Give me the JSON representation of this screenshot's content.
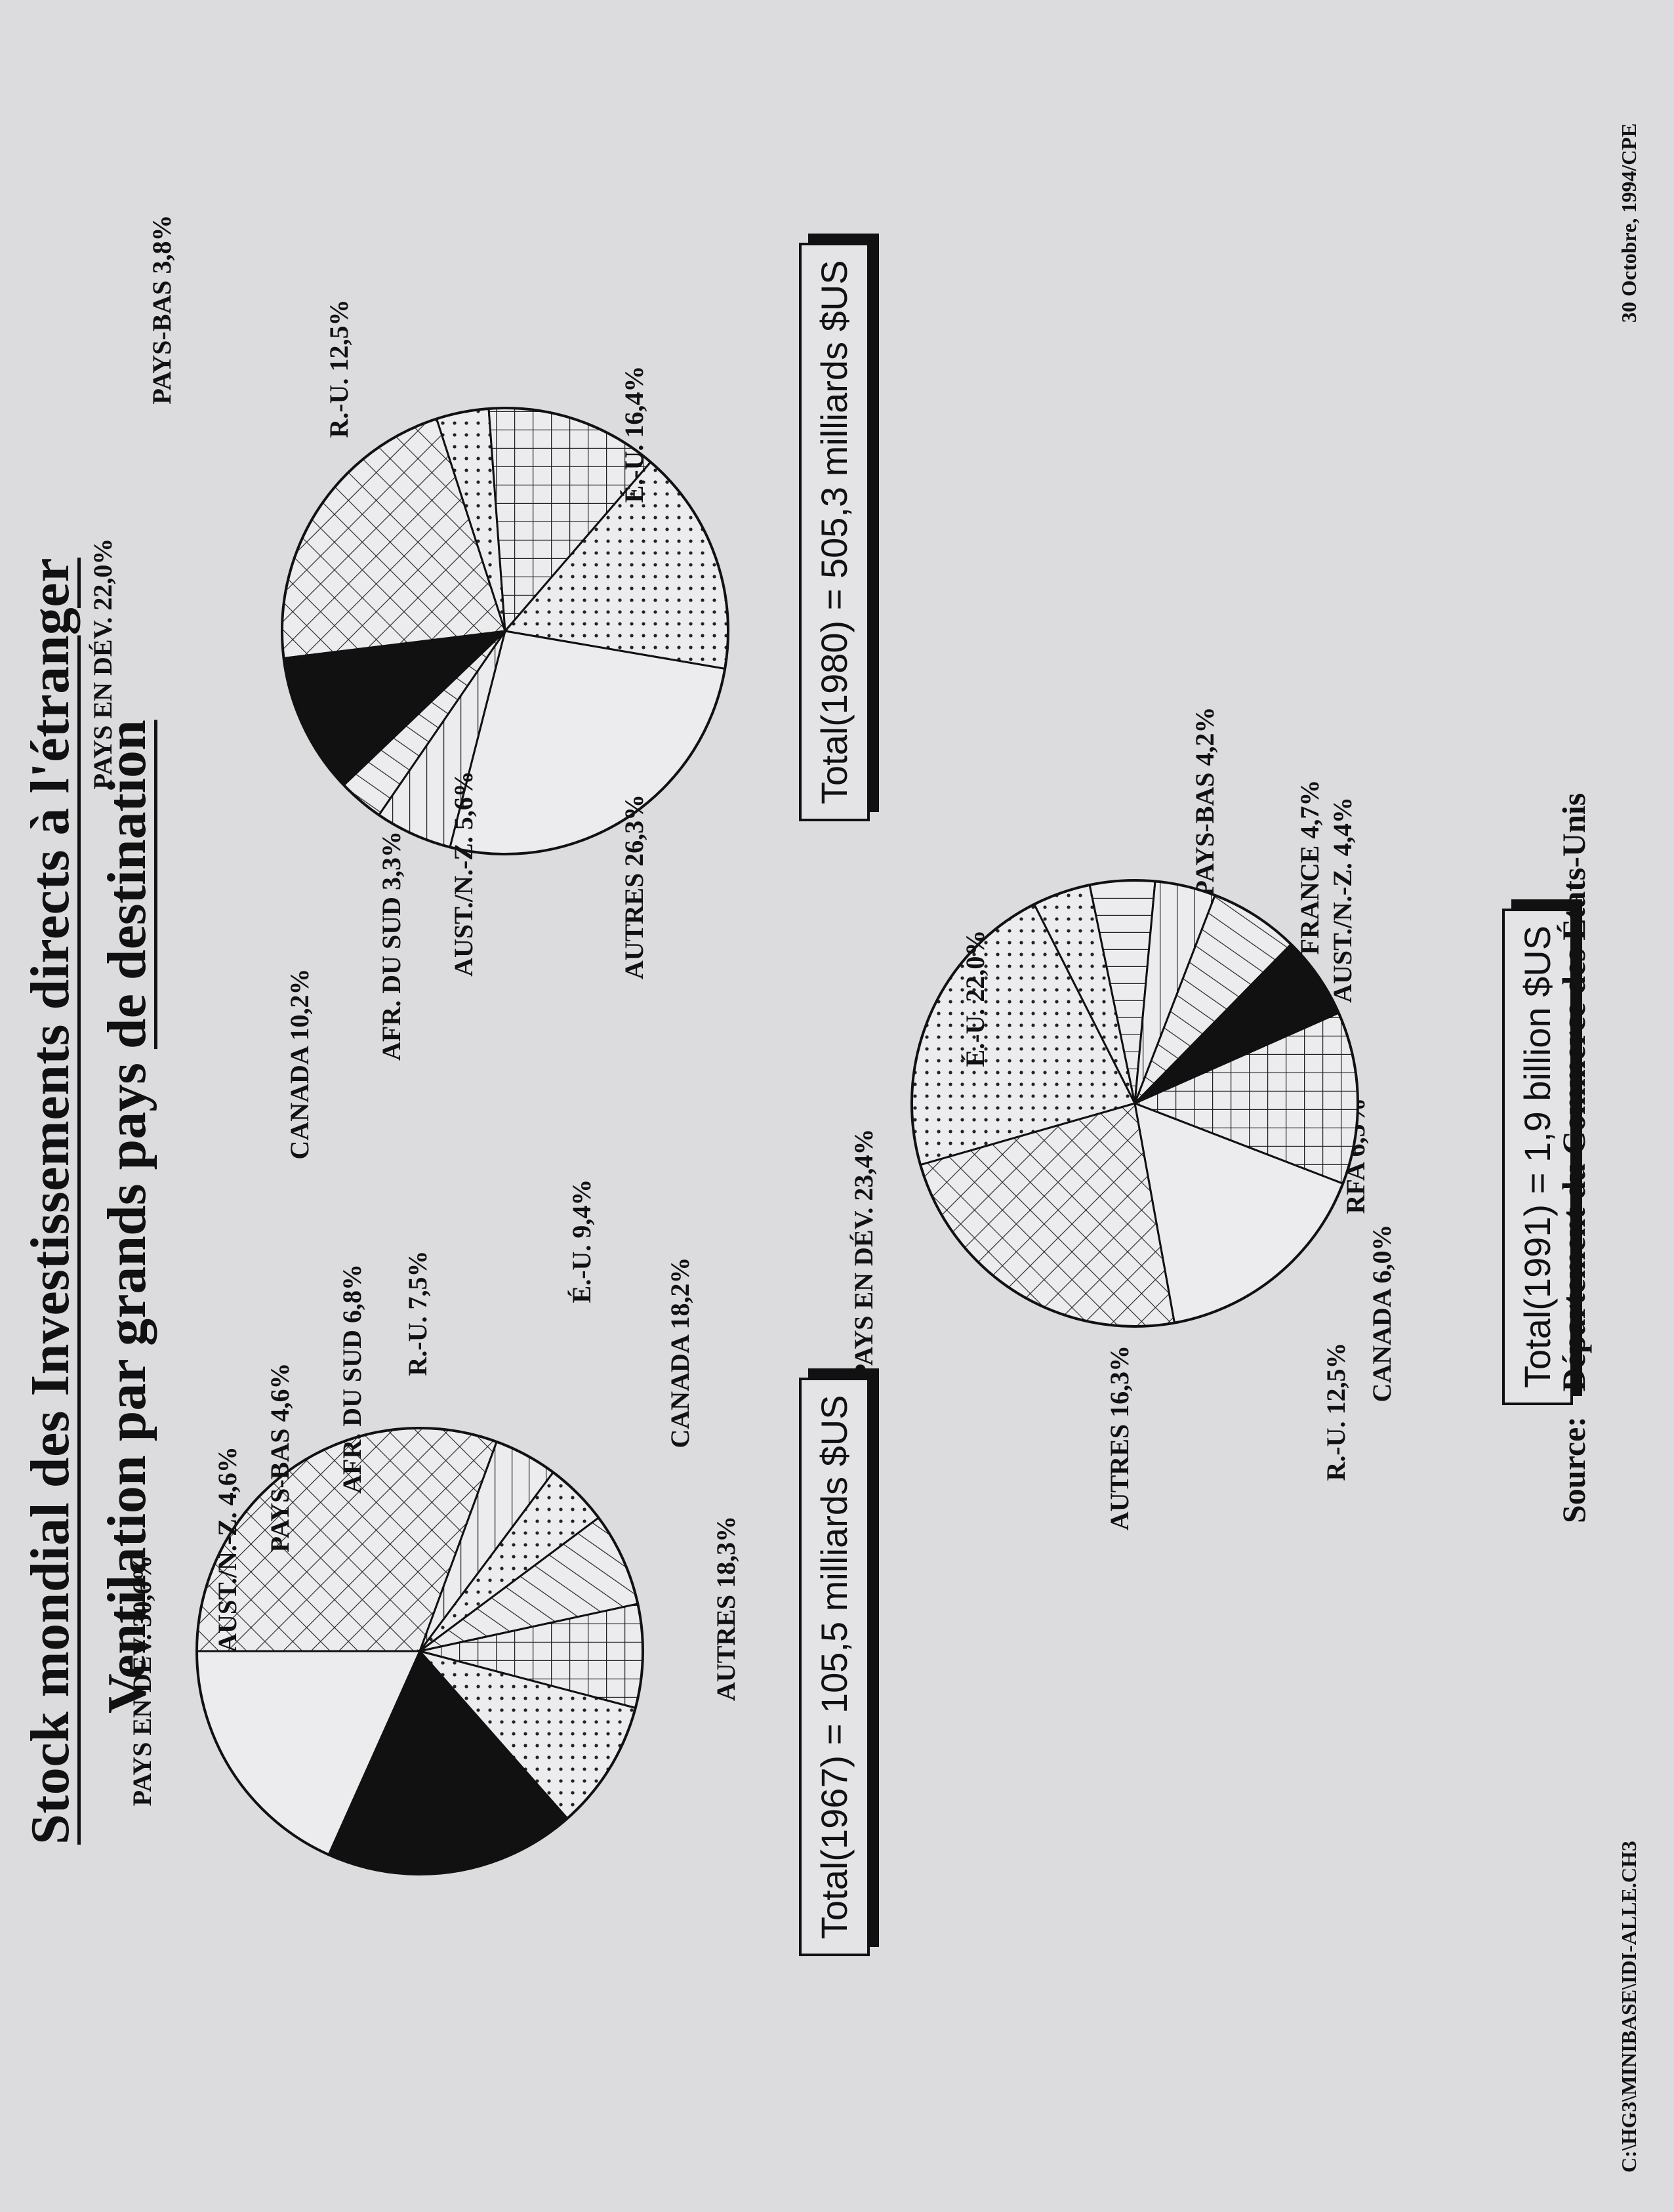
{
  "title": "Stock mondial des Investissements directs à l'étranger",
  "subtitle_prefix": "Ventilation par grands pays",
  "subtitle_underlined": "de destination",
  "source_label": "Source:",
  "source_value": "Département du Commerce des États-Unis",
  "footer_left": "C:\\HG3\\MINIBASE\\IDI-ALLE.CH3",
  "footer_right": "30 Octobre, 1994/CPE",
  "chart_data": [
    {
      "type": "pie",
      "total_label": "Total(1967) = 105,5 milliards $US",
      "slices": [
        {
          "label": "PAYS EN DÉV.",
          "text": "PAYS EN DÉV.  30,6%",
          "value": 30.6,
          "pattern": "crosshatch"
        },
        {
          "label": "AUST./N.-Z.",
          "text": "AUST./N.-Z.  4,6%",
          "value": 4.6,
          "pattern": "horizontal"
        },
        {
          "label": "PAYS-BAS",
          "text": "PAYS-BAS  4,6%",
          "value": 4.6,
          "pattern": "dots"
        },
        {
          "label": "AFR. DU SUD",
          "text": "AFR. DU SUD  6,8%",
          "value": 6.8,
          "pattern": "diagonal"
        },
        {
          "label": "R.-U.",
          "text": "R.-U.  7,5%",
          "value": 7.5,
          "pattern": "grid"
        },
        {
          "label": "É.-U.",
          "text": "É.-U.  9,4%",
          "value": 9.4,
          "pattern": "dots"
        },
        {
          "label": "CANADA",
          "text": "CANADA  18,2%",
          "value": 18.2,
          "pattern": "solid"
        },
        {
          "label": "AUTRES",
          "text": "AUTRES  18,3%",
          "value": 18.3,
          "pattern": "plain"
        }
      ]
    },
    {
      "type": "pie",
      "total_label": "Total(1980) = 505,3 milliards $US",
      "slices": [
        {
          "label": "PAYS EN DÉV.",
          "text": "PAYS EN DÉV.  22,0%",
          "value": 22.0,
          "pattern": "crosshatch"
        },
        {
          "label": "PAYS-BAS",
          "text": "PAYS-BAS  3,8%",
          "value": 3.8,
          "pattern": "dots"
        },
        {
          "label": "R.-U.",
          "text": "R.-U.  12,5%",
          "value": 12.5,
          "pattern": "grid"
        },
        {
          "label": "É.-U.",
          "text": "É.-U.  16,4%",
          "value": 16.4,
          "pattern": "dots"
        },
        {
          "label": "AUTRES",
          "text": "AUTRES  26,3%",
          "value": 26.3,
          "pattern": "plain"
        },
        {
          "label": "AUST./N.-Z.",
          "text": "AUST./N.-Z.  5,6%",
          "value": 5.6,
          "pattern": "horizontal"
        },
        {
          "label": "AFR. DU SUD",
          "text": "AFR. DU SUD  3,3%",
          "value": 3.3,
          "pattern": "diagonal"
        },
        {
          "label": "CANADA",
          "text": "CANADA  10,2%",
          "value": 10.2,
          "pattern": "solid"
        }
      ]
    },
    {
      "type": "pie",
      "total_label": "Total(1991) = 1,9 billion $US",
      "slices": [
        {
          "label": "É.-U.",
          "text": "É.-U.  22,0%",
          "value": 22.0,
          "pattern": "dots"
        },
        {
          "label": "PAYS-BAS",
          "text": "PAYS-BAS  4,2%",
          "value": 4.2,
          "pattern": "dots"
        },
        {
          "label": "FRANCE",
          "text": "FRANCE  4,7%",
          "value": 4.7,
          "pattern": "vertical"
        },
        {
          "label": "AUST./N.-Z.",
          "text": "AUST./N.-Z.  4,4%",
          "value": 4.4,
          "pattern": "horizontal"
        },
        {
          "label": "RFA",
          "text": "RFA  6,5%",
          "value": 6.5,
          "pattern": "diagonal"
        },
        {
          "label": "CANADA",
          "text": "CANADA  6,0%",
          "value": 6.0,
          "pattern": "solid"
        },
        {
          "label": "R.-U.",
          "text": "R.-U.  12,5%",
          "value": 12.5,
          "pattern": "grid"
        },
        {
          "label": "AUTRES",
          "text": "AUTRES  16,3%",
          "value": 16.3,
          "pattern": "plain"
        },
        {
          "label": "PAYS EN DÉV.",
          "text": "PAYS EN DÉV.  23,4%",
          "value": 23.4,
          "pattern": "crosshatch"
        }
      ]
    }
  ]
}
